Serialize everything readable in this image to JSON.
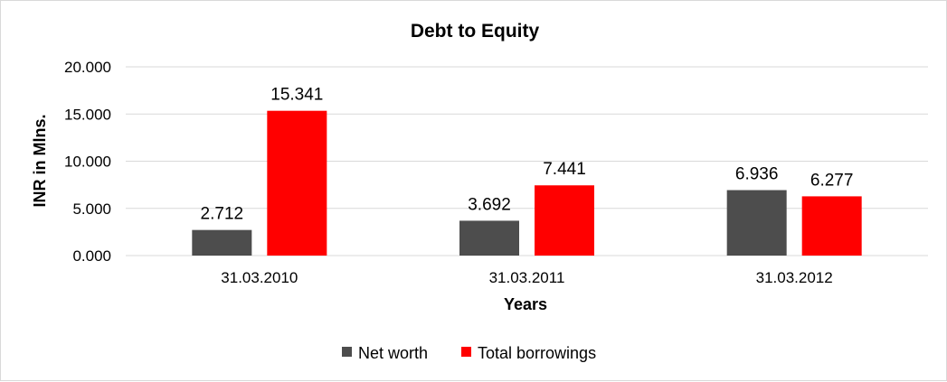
{
  "chart_data": {
    "type": "bar",
    "title": "Debt to Equity",
    "xlabel": "Years",
    "ylabel": "INR in Mlns.",
    "categories": [
      "31.03.2010",
      "31.03.2011",
      "31.03.2012"
    ],
    "series": [
      {
        "name": "Net worth",
        "color": "#4d4d4d",
        "values": [
          2.712,
          3.692,
          6.936
        ],
        "labels": [
          "2.712",
          "3.692",
          "6.936"
        ]
      },
      {
        "name": "Total borrowings",
        "color": "#ff0000",
        "values": [
          15.341,
          7.441,
          6.277
        ],
        "labels": [
          "15.341",
          "7.441",
          "6.277"
        ]
      }
    ],
    "ylim": [
      0,
      20
    ],
    "yticks": [
      0,
      5,
      10,
      15,
      20
    ],
    "ytick_labels": [
      "0.000",
      "5.000",
      "10.000",
      "15.000",
      "20.000"
    ],
    "grid": true,
    "legend_position": "bottom"
  }
}
